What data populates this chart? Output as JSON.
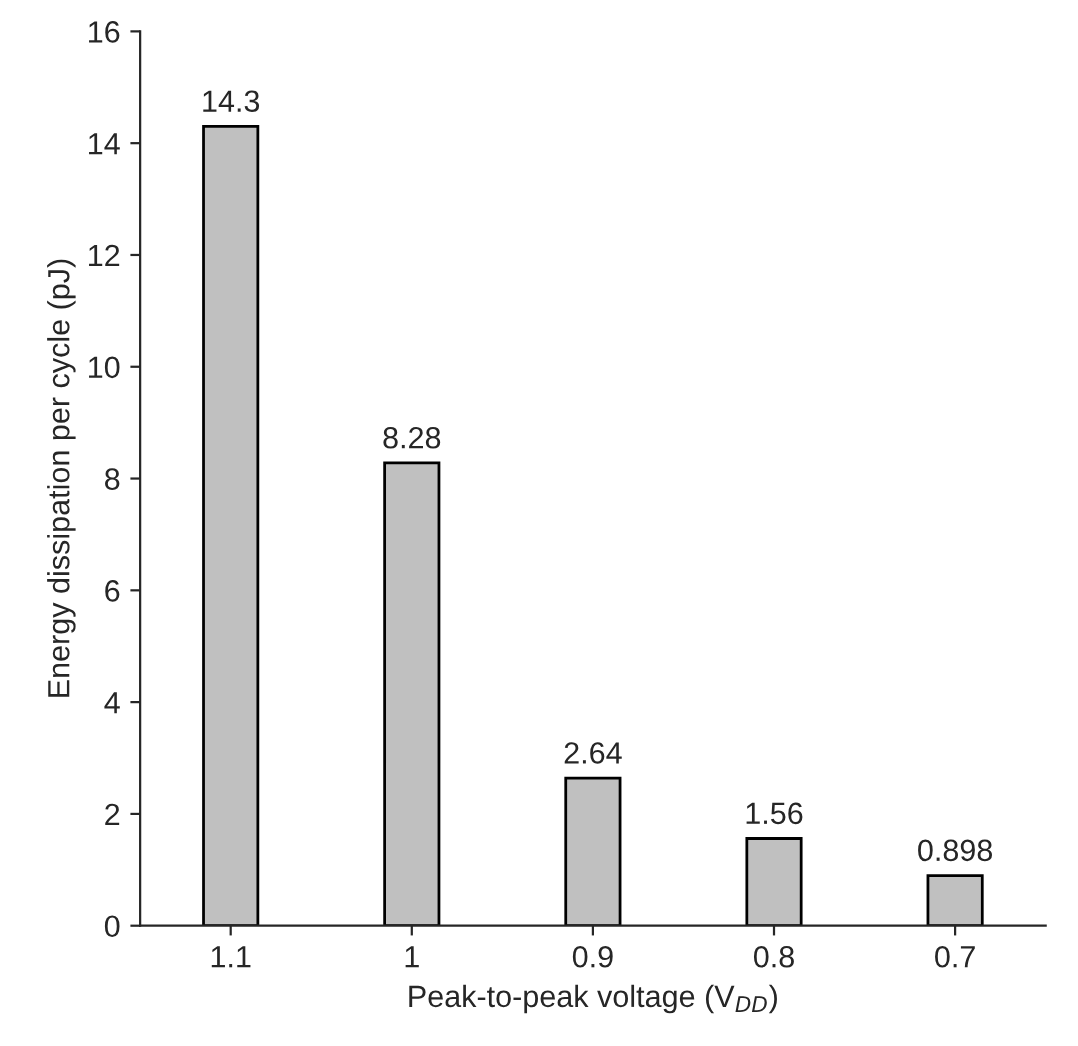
{
  "chart_data": {
    "type": "bar",
    "xlabel": "Peak-to-peak voltage (V$_{DD}$)",
    "ylabel": "Energy dissipation per cycle (pJ)",
    "categories": [
      "1.1",
      "1",
      "0.9",
      "0.8",
      "0.7"
    ],
    "values": [
      14.3,
      8.28,
      2.64,
      1.56,
      0.898
    ],
    "value_labels": [
      "14.3",
      "8.28",
      "2.64",
      "1.56",
      "0.898"
    ],
    "color": "#c0c0c0",
    "ylim": [
      0,
      16
    ],
    "yticks": [
      0,
      2,
      4,
      6,
      8,
      10,
      12,
      14,
      16
    ],
    "grid": false
  }
}
